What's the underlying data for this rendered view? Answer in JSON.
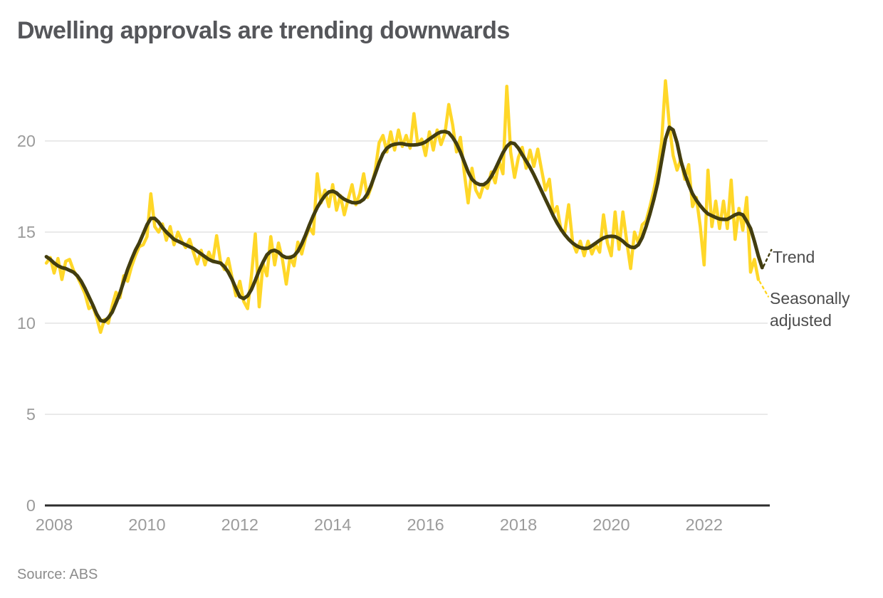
{
  "title": "Dwelling approvals are trending downwards",
  "source": "Source: ABS",
  "legend": {
    "trend": "Trend",
    "seasonal": "Seasonally adjusted"
  },
  "colors": {
    "trend_line": "#423D0F",
    "seasonal_line": "#FFD51C",
    "grid": "#E3E3E3",
    "axis": "#2D2D2D",
    "tick_label": "#9B9B9B",
    "title_text": "#55565A",
    "legend_text": "#4C4C4C",
    "source_text": "#8C8C8C",
    "background": "#FFFFFF"
  },
  "chart_data": {
    "type": "line",
    "title": "Dwelling approvals are trending downwards",
    "xlabel": "",
    "ylabel": "",
    "x_start_year": 2007.8333,
    "x_step_months": 1,
    "x_end_year": 2023.25,
    "xlim": [
      2007.75,
      2023.4
    ],
    "ylim": [
      0,
      23.5
    ],
    "x_ticks": [
      2008,
      2010,
      2012,
      2014,
      2016,
      2018,
      2020,
      2022
    ],
    "y_ticks": [
      0,
      5,
      10,
      15,
      20
    ],
    "grid": "horizontal",
    "legend_position": "right-of-line-ends",
    "series": [
      {
        "name": "Trend",
        "color": "#423D0F",
        "style": "solid",
        "width": 5,
        "values": [
          13.65,
          13.5,
          13.3,
          13.15,
          13.05,
          13.0,
          12.9,
          12.8,
          12.6,
          12.3,
          11.9,
          11.45,
          11.0,
          10.5,
          10.15,
          10.1,
          10.3,
          10.6,
          11.1,
          11.65,
          12.3,
          12.95,
          13.5,
          14.0,
          14.4,
          14.9,
          15.4,
          15.75,
          15.75,
          15.55,
          15.25,
          15.0,
          14.8,
          14.6,
          14.5,
          14.4,
          14.3,
          14.2,
          14.1,
          13.95,
          13.8,
          13.65,
          13.5,
          13.4,
          13.35,
          13.3,
          13.1,
          12.8,
          12.4,
          11.9,
          11.45,
          11.35,
          11.5,
          11.85,
          12.35,
          12.9,
          13.35,
          13.75,
          13.95,
          14.0,
          13.9,
          13.7,
          13.6,
          13.6,
          13.7,
          13.95,
          14.35,
          14.85,
          15.4,
          15.9,
          16.35,
          16.7,
          17.0,
          17.2,
          17.25,
          17.15,
          16.95,
          16.8,
          16.7,
          16.62,
          16.6,
          16.65,
          16.8,
          17.1,
          17.6,
          18.2,
          18.8,
          19.3,
          19.6,
          19.75,
          19.82,
          19.85,
          19.85,
          19.8,
          19.78,
          19.78,
          19.8,
          19.85,
          19.95,
          20.1,
          20.25,
          20.4,
          20.5,
          20.52,
          20.45,
          20.2,
          19.85,
          19.4,
          18.85,
          18.3,
          17.9,
          17.7,
          17.6,
          17.6,
          17.75,
          18.05,
          18.45,
          18.9,
          19.35,
          19.7,
          19.9,
          19.85,
          19.6,
          19.25,
          18.9,
          18.55,
          18.15,
          17.7,
          17.25,
          16.8,
          16.35,
          15.9,
          15.5,
          15.15,
          14.85,
          14.6,
          14.4,
          14.25,
          14.15,
          14.1,
          14.12,
          14.25,
          14.4,
          14.55,
          14.68,
          14.75,
          14.77,
          14.75,
          14.65,
          14.5,
          14.3,
          14.18,
          14.15,
          14.3,
          14.7,
          15.3,
          16.0,
          16.8,
          17.7,
          18.9,
          20.1,
          20.75,
          20.6,
          19.9,
          18.9,
          18.2,
          17.6,
          17.1,
          16.75,
          16.45,
          16.2,
          16.0,
          15.9,
          15.8,
          15.72,
          15.7,
          15.7,
          15.82,
          15.95,
          16.02,
          15.95,
          15.6,
          15.2,
          14.5,
          13.7,
          13.05
        ]
      },
      {
        "name": "Seasonally adjusted",
        "color": "#FFD51C",
        "style": "solid",
        "width": 4.5,
        "values": [
          13.3,
          13.6,
          12.75,
          13.55,
          12.4,
          13.4,
          13.5,
          12.9,
          12.55,
          12.1,
          11.6,
          10.8,
          10.95,
          10.3,
          9.5,
          10.2,
          10.0,
          10.95,
          11.7,
          11.4,
          12.6,
          12.3,
          13.1,
          13.7,
          14.2,
          14.3,
          14.75,
          17.1,
          15.3,
          15.0,
          15.45,
          14.55,
          15.3,
          14.3,
          15.0,
          14.5,
          14.15,
          14.6,
          13.9,
          13.25,
          14.0,
          13.2,
          13.9,
          13.4,
          14.8,
          13.4,
          12.95,
          13.55,
          12.5,
          11.5,
          12.3,
          11.2,
          10.8,
          12.6,
          14.9,
          10.9,
          13.3,
          12.6,
          14.75,
          13.2,
          14.4,
          13.5,
          12.15,
          13.65,
          13.15,
          14.45,
          13.8,
          14.7,
          15.25,
          14.9,
          18.2,
          16.6,
          17.3,
          16.4,
          17.6,
          16.2,
          17.0,
          15.95,
          16.8,
          17.6,
          16.5,
          17.1,
          18.2,
          16.9,
          17.5,
          18.4,
          19.9,
          20.3,
          19.4,
          20.5,
          19.5,
          20.6,
          19.7,
          20.3,
          19.6,
          21.5,
          19.8,
          20.1,
          19.2,
          20.5,
          19.5,
          20.6,
          19.8,
          20.4,
          22.0,
          20.9,
          19.4,
          20.2,
          18.3,
          16.6,
          18.5,
          17.3,
          16.9,
          17.6,
          17.4,
          18.3,
          17.7,
          18.9,
          18.2,
          23.0,
          19.4,
          18.0,
          19.1,
          19.65,
          18.5,
          19.5,
          18.6,
          19.55,
          18.4,
          17.3,
          17.9,
          16.0,
          16.4,
          15.1,
          15.0,
          16.5,
          14.45,
          13.9,
          14.5,
          13.7,
          14.5,
          13.8,
          14.3,
          13.9,
          15.95,
          14.4,
          13.7,
          16.1,
          14.05,
          16.1,
          14.5,
          13.0,
          15.0,
          14.4,
          15.4,
          15.6,
          16.4,
          17.3,
          18.4,
          19.9,
          23.3,
          20.9,
          19.2,
          18.4,
          19.0,
          17.9,
          18.7,
          16.4,
          16.9,
          15.3,
          13.2,
          18.4,
          15.3,
          16.7,
          15.2,
          16.7,
          15.2,
          17.85,
          14.6,
          16.3,
          15.1,
          16.9,
          12.8,
          13.5,
          12.4,
          null
        ]
      }
    ]
  }
}
